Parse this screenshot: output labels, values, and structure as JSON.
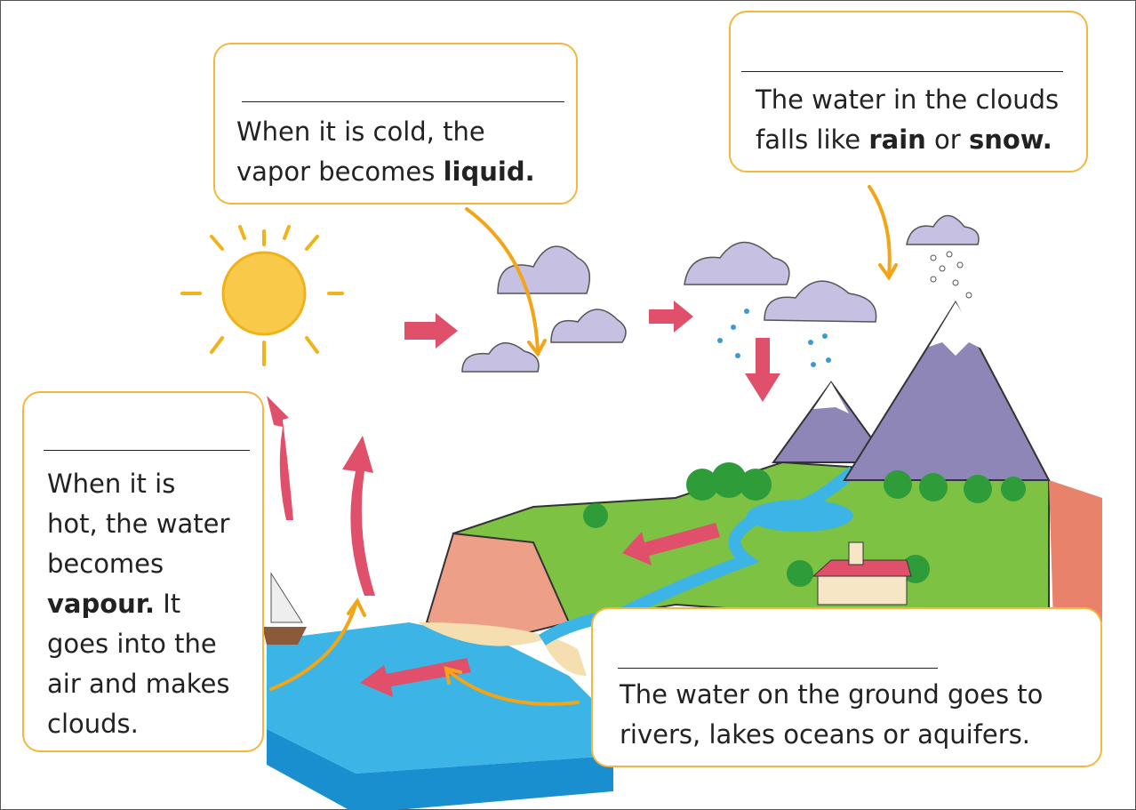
{
  "boxes": [
    {
      "lines": [
        [
          "When it is cold, the"
        ],
        [
          "vapor becomes ",
          "liquid."
        ]
      ]
    },
    {
      "lines": [
        [
          "The water in the clouds"
        ],
        [
          "falls like ",
          "rain",
          " or ",
          "snow."
        ]
      ]
    },
    {
      "lines": [
        [
          "When it is"
        ],
        [
          "hot, the water"
        ],
        [
          "becomes"
        ],
        [
          "vapour.",
          " It"
        ],
        [
          "goes into the"
        ],
        [
          "air and makes"
        ],
        [
          "clouds."
        ]
      ]
    },
    {
      "lines": [
        [
          "The water on the ground goes to"
        ],
        [
          "rivers, lakes oceans or aquifers."
        ]
      ]
    }
  ]
}
